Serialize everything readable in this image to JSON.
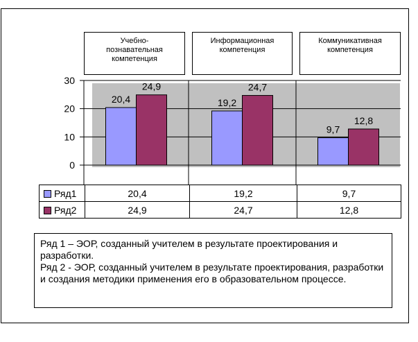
{
  "chart_data": {
    "type": "bar",
    "categories": [
      "Учебно-познавательная компетенция",
      "Информационная компетенция",
      "Коммуникативная компетенция"
    ],
    "category_lines": [
      [
        "Учебно-",
        "познавательная",
        "компетенция"
      ],
      [
        "Информационная",
        "компетенция"
      ],
      [
        "Коммуникативная",
        "компетенция"
      ]
    ],
    "series": [
      {
        "name": "Ряд1",
        "values": [
          20.4,
          19.2,
          9.7
        ],
        "value_labels": [
          "20,4",
          "19,2",
          "9,7"
        ],
        "color": "#9999ff"
      },
      {
        "name": "Ряд2",
        "values": [
          24.9,
          24.7,
          12.8
        ],
        "value_labels": [
          "24,9",
          "24,7",
          "12,8"
        ],
        "color": "#993366"
      }
    ],
    "yticks": [
      "0",
      "10",
      "20",
      "30"
    ],
    "ylim": [
      0,
      30
    ],
    "grid": true,
    "plot_background": "#c0c0c0",
    "data_table": true
  },
  "note": {
    "line1": "Ряд 1 – ЭОР, созданный учителем в результате проектирования и разработки.",
    "line2": "Ряд 2 - ЭОР, созданный учителем в результате проектирования, разработки и создания методики применения его в образовательном процессе."
  }
}
